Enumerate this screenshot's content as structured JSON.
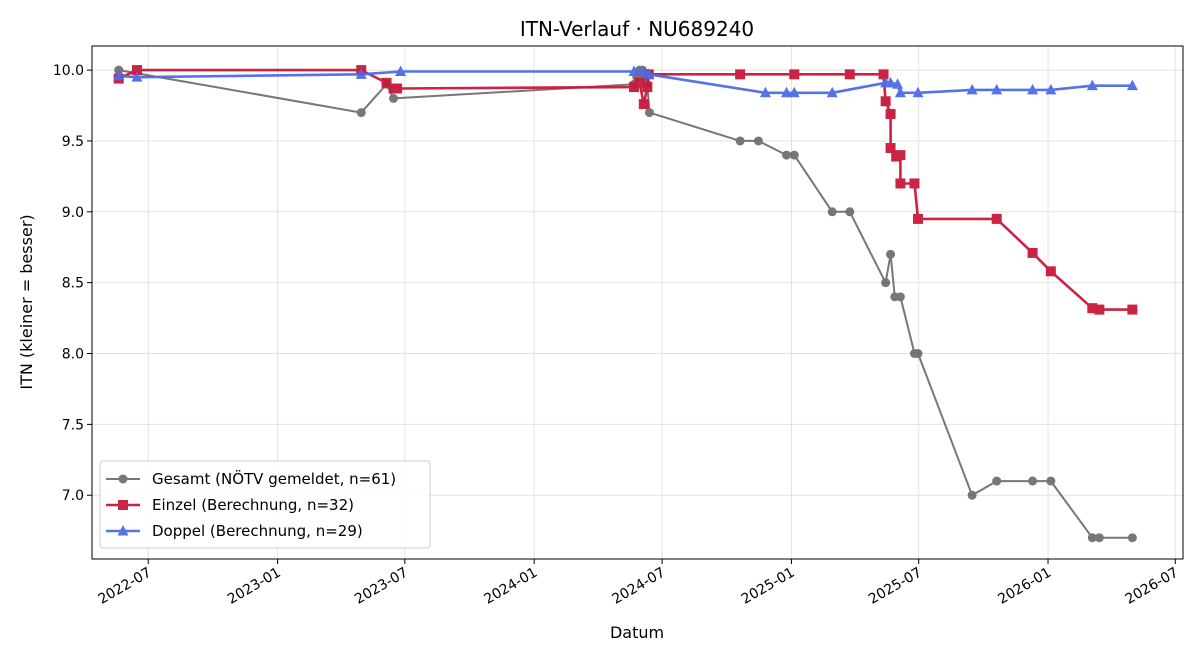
{
  "chart_data": {
    "type": "line",
    "title": "ITN-Verlauf · NU689240",
    "xlabel": "Datum",
    "ylabel": "ITN  (kleiner = besser)",
    "x_axis_type": "date",
    "xlim": [
      "2022-04-12",
      "2026-07-12"
    ],
    "ylim": [
      6.55,
      10.17
    ],
    "xticks": [
      "2022-07-01",
      "2023-01-01",
      "2023-07-01",
      "2024-01-01",
      "2024-07-01",
      "2025-01-01",
      "2025-07-01",
      "2026-01-01",
      "2026-07-01"
    ],
    "xtick_labels": [
      "2022-07",
      "2023-01",
      "2023-07",
      "2024-01",
      "2024-07",
      "2025-01",
      "2025-07",
      "2026-01",
      "2026-07"
    ],
    "yticks": [
      7.0,
      7.5,
      8.0,
      8.5,
      9.0,
      9.5,
      10.0
    ],
    "ytick_labels": [
      "7.0",
      "7.5",
      "8.0",
      "8.5",
      "9.0",
      "9.5",
      "10.0"
    ],
    "grid": true,
    "legend_position": "bottom-left",
    "series": [
      {
        "name": "Gesamt (NÖTV gemeldet, n=61)",
        "color": "#444444",
        "marker": "circle",
        "points": [
          [
            "2022-05-20",
            10.0
          ],
          [
            "2023-04-30",
            9.7
          ],
          [
            "2023-06-05",
            9.9
          ],
          [
            "2023-06-15",
            9.8
          ],
          [
            "2024-05-22",
            9.9
          ],
          [
            "2024-05-26",
            9.95
          ],
          [
            "2024-05-30",
            10.0
          ],
          [
            "2024-06-03",
            10.0
          ],
          [
            "2024-06-07",
            9.95
          ],
          [
            "2024-06-10",
            9.9
          ],
          [
            "2024-06-13",
            9.7
          ],
          [
            "2024-10-20",
            9.5
          ],
          [
            "2024-11-15",
            9.5
          ],
          [
            "2024-12-25",
            9.4
          ],
          [
            "2025-01-05",
            9.4
          ],
          [
            "2025-02-28",
            9.0
          ],
          [
            "2025-03-25",
            9.0
          ],
          [
            "2025-05-15",
            8.5
          ],
          [
            "2025-05-22",
            8.7
          ],
          [
            "2025-05-28",
            8.4
          ],
          [
            "2025-06-05",
            8.4
          ],
          [
            "2025-06-25",
            8.0
          ],
          [
            "2025-06-30",
            8.0
          ],
          [
            "2025-09-15",
            7.0
          ],
          [
            "2025-10-20",
            7.1
          ],
          [
            "2025-12-10",
            7.1
          ],
          [
            "2026-01-05",
            7.1
          ],
          [
            "2026-03-05",
            6.7
          ],
          [
            "2026-03-15",
            6.7
          ],
          [
            "2026-05-01",
            6.7
          ]
        ]
      },
      {
        "name": "Einzel (Berechnung, n=32)",
        "color": "#c8183a",
        "marker": "square",
        "points": [
          [
            "2022-05-20",
            9.94
          ],
          [
            "2022-06-15",
            10.0
          ],
          [
            "2023-04-30",
            10.0
          ],
          [
            "2023-06-05",
            9.91
          ],
          [
            "2023-06-15",
            9.87
          ],
          [
            "2023-06-20",
            9.87
          ],
          [
            "2024-05-22",
            9.88
          ],
          [
            "2024-05-30",
            9.91
          ],
          [
            "2024-06-05",
            9.76
          ],
          [
            "2024-06-10",
            9.88
          ],
          [
            "2024-06-12",
            9.97
          ],
          [
            "2024-10-20",
            9.97
          ],
          [
            "2025-01-05",
            9.97
          ],
          [
            "2025-03-25",
            9.97
          ],
          [
            "2025-05-12",
            9.97
          ],
          [
            "2025-05-15",
            9.78
          ],
          [
            "2025-05-22",
            9.69
          ],
          [
            "2025-05-22",
            9.45
          ],
          [
            "2025-05-30",
            9.39
          ],
          [
            "2025-06-05",
            9.4
          ],
          [
            "2025-06-05",
            9.2
          ],
          [
            "2025-06-25",
            9.2
          ],
          [
            "2025-06-30",
            8.95
          ],
          [
            "2025-10-20",
            8.95
          ],
          [
            "2025-12-10",
            8.71
          ],
          [
            "2026-01-05",
            8.58
          ],
          [
            "2026-03-05",
            8.32
          ],
          [
            "2026-03-15",
            8.31
          ],
          [
            "2026-05-01",
            8.31
          ]
        ]
      },
      {
        "name": "Doppel (Berechnung, n=29)",
        "color": "#4e6be6",
        "marker": "triangle",
        "points": [
          [
            "2022-05-20",
            9.96
          ],
          [
            "2022-06-15",
            9.95
          ],
          [
            "2023-04-30",
            9.97
          ],
          [
            "2023-06-25",
            9.99
          ],
          [
            "2024-05-22",
            9.99
          ],
          [
            "2024-06-05",
            9.99
          ],
          [
            "2024-06-12",
            9.97
          ],
          [
            "2024-11-25",
            9.84
          ],
          [
            "2024-12-25",
            9.84
          ],
          [
            "2025-01-05",
            9.84
          ],
          [
            "2025-02-28",
            9.84
          ],
          [
            "2025-05-15",
            9.91
          ],
          [
            "2025-05-22",
            9.91
          ],
          [
            "2025-06-01",
            9.9
          ],
          [
            "2025-06-05",
            9.84
          ],
          [
            "2025-06-30",
            9.84
          ],
          [
            "2025-09-15",
            9.86
          ],
          [
            "2025-10-20",
            9.86
          ],
          [
            "2025-12-10",
            9.86
          ],
          [
            "2026-01-05",
            9.86
          ],
          [
            "2026-03-05",
            9.89
          ],
          [
            "2026-05-01",
            9.89
          ]
        ]
      }
    ]
  }
}
